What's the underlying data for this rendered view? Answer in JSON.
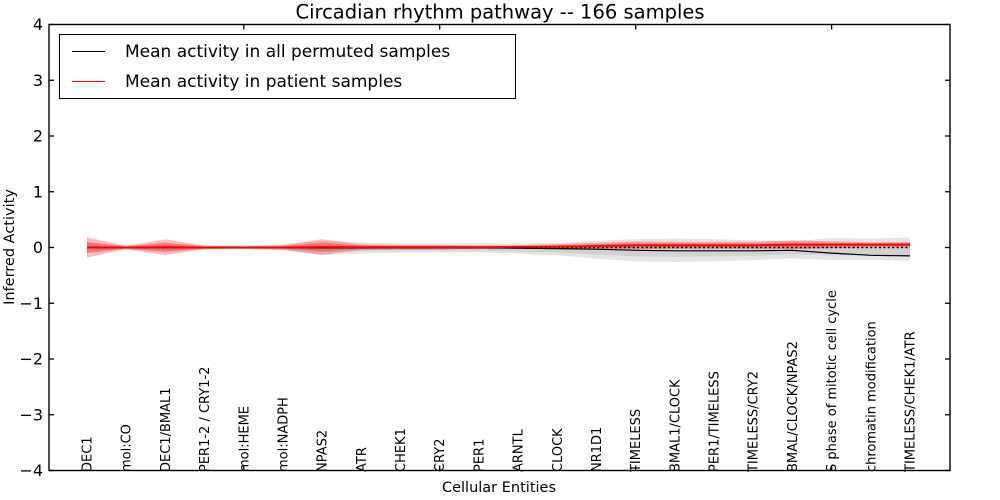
{
  "figure": {
    "background": "#ffffff"
  },
  "chart_data": {
    "type": "line",
    "title": "Circadian rhythm pathway -- 166 samples",
    "xlabel": "Cellular Entities",
    "ylabel": "Inferred Activity",
    "ylim": [
      -4,
      4
    ],
    "grid": false,
    "yticks": [
      4,
      3,
      2,
      1,
      0,
      -1,
      -2,
      -3,
      -4
    ],
    "ytick_labels": [
      "4",
      "3",
      "2",
      "1",
      "0",
      "−1",
      "−2",
      "−3",
      "−4"
    ],
    "xtick_positions": [
      5,
      10,
      15,
      20
    ],
    "categories": [
      "DEC1",
      "mol:CO",
      "DEC1/BMAL1",
      "PER1-2 / CRY1-2",
      "mol:HEME",
      "mol:NADPH",
      "NPAS2",
      "ATR",
      "CHEK1",
      "CRY2",
      "PER1",
      "ARNTL",
      "CLOCK",
      "NR1D1",
      "TIMELESS",
      "BMAL1/CLOCK",
      "PER1/TIMELESS",
      "TIMELESS/CRY2",
      "BMAL/CLOCK/NPAS2",
      "S phase of mitotic cell cycle",
      "chromatin modification",
      "TIMELESS/CHEK1/ATR"
    ],
    "series": [
      {
        "name": "Mean activity in all permuted samples",
        "color": "#000000",
        "style": "solid",
        "values": [
          0,
          0,
          0,
          0,
          0,
          0,
          -0.005,
          -0.005,
          -0.005,
          -0.005,
          -0.005,
          -0.01,
          -0.02,
          -0.03,
          -0.05,
          -0.06,
          -0.06,
          -0.06,
          -0.05,
          -0.1,
          -0.14,
          -0.15
        ]
      },
      {
        "name": "Mean activity in patient samples",
        "color": "#ff0000",
        "style": "solid",
        "values": [
          0,
          0,
          0.005,
          0,
          0,
          0,
          0.01,
          0.005,
          0.005,
          0.005,
          0.005,
          0.01,
          0.015,
          0.025,
          0.04,
          0.04,
          0.04,
          0.04,
          0.05,
          0.05,
          0.05,
          0.05
        ]
      }
    ],
    "bands": [
      {
        "name": "permuted-samples-range",
        "color": "#999999",
        "opacity": 0.25,
        "centers": [
          0,
          0,
          0,
          0,
          0,
          0,
          -0.01,
          -0.01,
          -0.01,
          -0.01,
          -0.01,
          -0.02,
          -0.03,
          -0.04,
          -0.05,
          -0.05,
          -0.05,
          -0.05,
          -0.04,
          -0.03,
          -0.03,
          -0.03
        ],
        "half_widths": [
          0.1,
          0.03,
          0.08,
          0.04,
          0.04,
          0.06,
          0.13,
          0.1,
          0.08,
          0.08,
          0.08,
          0.09,
          0.11,
          0.16,
          0.2,
          0.21,
          0.2,
          0.18,
          0.15,
          0.2,
          0.19,
          0.21
        ]
      },
      {
        "name": "patient-samples-range",
        "color": "#ff0000",
        "opacity": 0.27,
        "centers": [
          0,
          0,
          0.005,
          0,
          0,
          0,
          0.01,
          0.005,
          0.005,
          0.005,
          0.005,
          0.01,
          0.015,
          0.025,
          0.04,
          0.04,
          0.04,
          0.04,
          0.05,
          0.05,
          0.05,
          0.05
        ],
        "half_widths": [
          0.18,
          0.03,
          0.14,
          0.03,
          0.02,
          0.04,
          0.14,
          0.05,
          0.04,
          0.04,
          0.03,
          0.03,
          0.045,
          0.06,
          0.07,
          0.06,
          0.06,
          0.06,
          0.08,
          0.06,
          0.045,
          0.05
        ]
      }
    ],
    "zero_line": {
      "value": 0,
      "color": "#000000",
      "style": "dotted"
    },
    "legend": {
      "position": "upper-left"
    }
  }
}
